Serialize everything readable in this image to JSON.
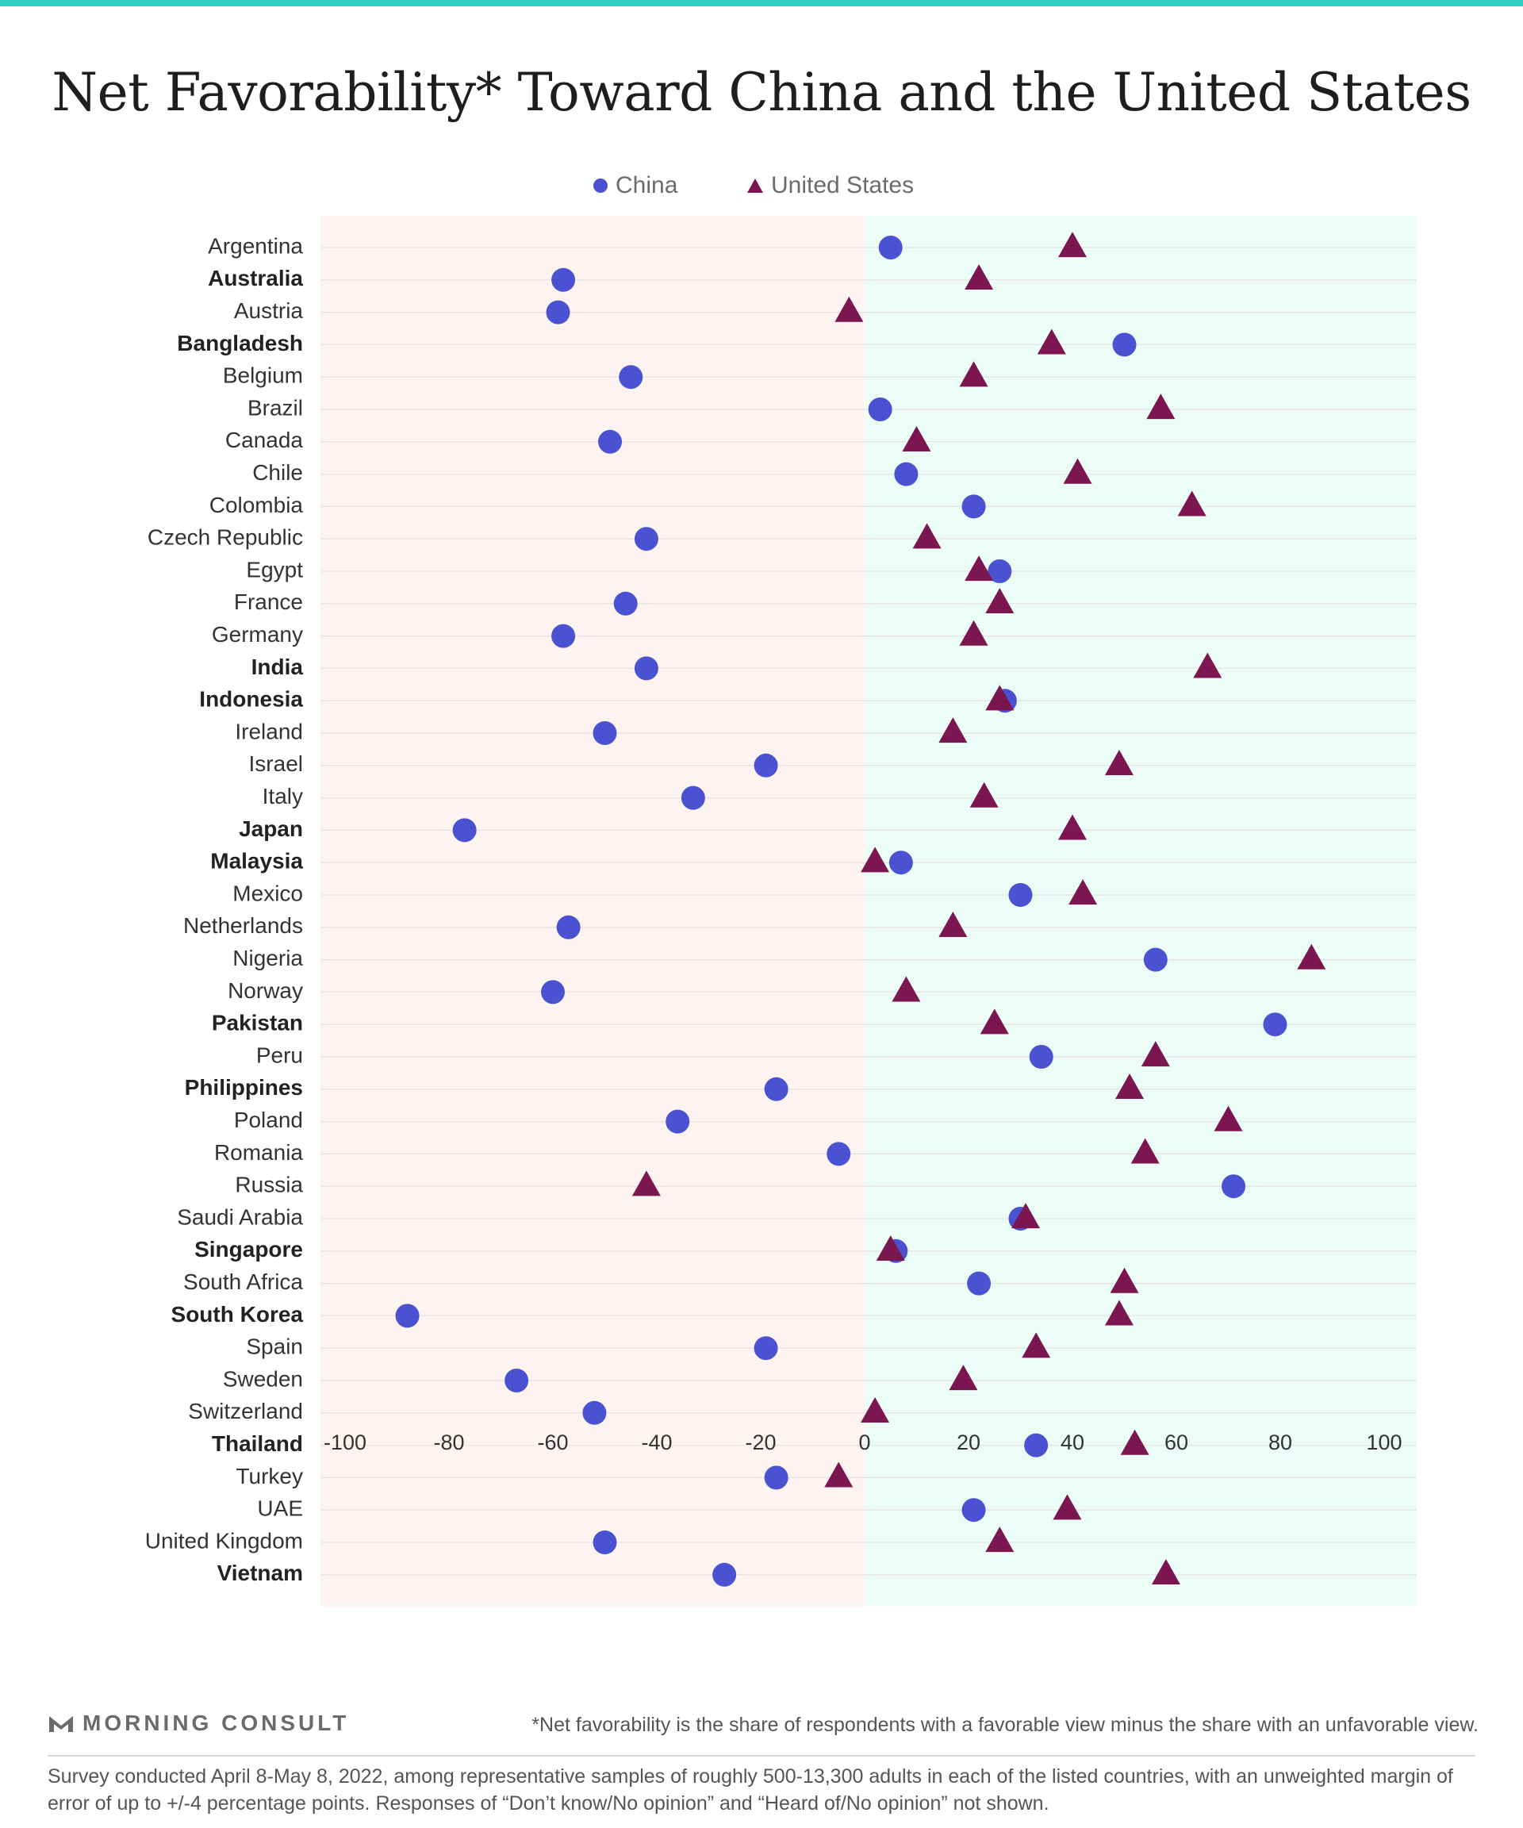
{
  "title": "Net Favorability* Toward China and the United States",
  "legend": {
    "china": "China",
    "us": "United States"
  },
  "colors": {
    "china": "#4b52d2",
    "us": "#7b1650",
    "negative_band": "#fdf3f1",
    "positive_band": "#ecfdf7",
    "top_bar": "#2ecfc3"
  },
  "chart_data": {
    "type": "scatter",
    "xlim": [
      -100,
      100
    ],
    "xticks": [
      -100,
      -80,
      -60,
      -40,
      -20,
      0,
      20,
      40,
      60,
      80,
      100
    ],
    "grid": true,
    "legend_position": "top-center",
    "categories": [
      "Argentina",
      "Australia",
      "Austria",
      "Bangladesh",
      "Belgium",
      "Brazil",
      "Canada",
      "Chile",
      "Colombia",
      "Czech Republic",
      "Egypt",
      "France",
      "Germany",
      "India",
      "Indonesia",
      "Ireland",
      "Israel",
      "Italy",
      "Japan",
      "Malaysia",
      "Mexico",
      "Netherlands",
      "Nigeria",
      "Norway",
      "Pakistan",
      "Peru",
      "Philippines",
      "Poland",
      "Romania",
      "Russia",
      "Saudi Arabia",
      "Singapore",
      "South Africa",
      "South Korea",
      "Spain",
      "Sweden",
      "Switzerland",
      "Thailand",
      "Turkey",
      "UAE",
      "United Kingdom",
      "Vietnam"
    ],
    "bold_categories": [
      "Australia",
      "Bangladesh",
      "India",
      "Indonesia",
      "Japan",
      "Malaysia",
      "Pakistan",
      "Philippines",
      "Singapore",
      "South Korea",
      "Thailand",
      "Vietnam"
    ],
    "series": [
      {
        "name": "China",
        "marker": "circle",
        "values": [
          5,
          -58,
          -59,
          50,
          -45,
          3,
          -49,
          8,
          21,
          -42,
          26,
          -46,
          -58,
          -42,
          27,
          -50,
          -19,
          -33,
          -77,
          7,
          30,
          -57,
          56,
          -60,
          79,
          34,
          -17,
          -36,
          -5,
          71,
          30,
          6,
          22,
          -88,
          -19,
          -67,
          -52,
          33,
          -17,
          21,
          -50,
          -27
        ]
      },
      {
        "name": "United States",
        "marker": "triangle",
        "values": [
          40,
          22,
          -3,
          36,
          21,
          57,
          10,
          41,
          63,
          12,
          22,
          26,
          21,
          66,
          26,
          17,
          49,
          23,
          40,
          2,
          42,
          17,
          86,
          8,
          25,
          56,
          51,
          70,
          54,
          -42,
          31,
          5,
          50,
          49,
          33,
          19,
          2,
          52,
          -5,
          39,
          26,
          58
        ]
      }
    ]
  },
  "footer": {
    "logo": "MORNING CONSULT",
    "footnote": "*Net favorability is the share of respondents with a favorable view minus the share with an unfavorable view.",
    "survey": "Survey conducted April 8-May 8, 2022, among representative samples of roughly 500-13,300 adults in each of the listed countries, with an unweighted margin of error of up to +/-4 percentage points. Responses of “Don’t know/No opinion” and “Heard of/No opinion” not shown."
  }
}
